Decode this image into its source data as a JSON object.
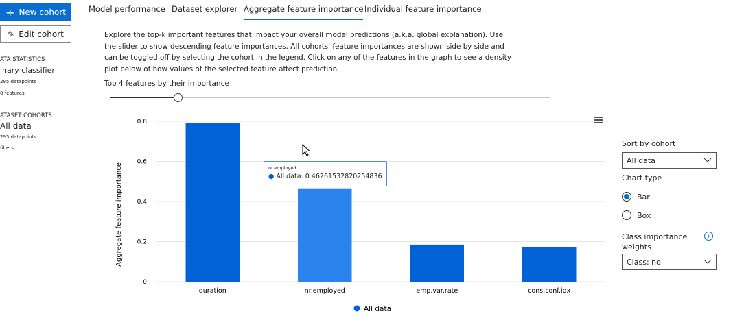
{
  "sidebar": {
    "new_cohort": "New cohort",
    "edit_cohort": "Edit cohort",
    "stats_heading": "ATA STATISTICS",
    "classifier": "inary classifier",
    "datapoints": "295 datapoints",
    "features": "0 features",
    "cohorts_heading": "ATASET COHORTS",
    "cohort_name": "All data",
    "cohort_datapoints": "295 datapoints",
    "cohort_filters": "filters"
  },
  "tabs": [
    "Model performance",
    "Dataset explorer",
    "Aggregate feature importance",
    "Individual feature importance"
  ],
  "description": "Explore the top-k important features that impact your overall model predictions (a.k.a. global explanation). Use the slider to show descending feature importances. All cohorts' feature importances are shown side by side and can be toggled off by selecting the cohort in the legend. Click on any of the features in the graph to see a density plot below of how values of the selected feature affect prediction.",
  "slider_label": "Top 4 features by their importance",
  "tooltip": {
    "title": "nr.employed",
    "text": "All data: 0.46261532820254836"
  },
  "options": {
    "sort_label": "Sort by cohort",
    "sort_value": "All data",
    "chart_type_label": "Chart type",
    "bar": "Bar",
    "box": "Box",
    "class_weights_label": "Class importance weights",
    "class_value": "Class: no"
  },
  "chart_data": {
    "type": "bar",
    "y_label": "Aggregate feature importance",
    "categories": [
      "duration",
      "nr.employed",
      "emp.var.rate",
      "cons.conf.idx"
    ],
    "series": [
      {
        "name": "All data",
        "color": "#0062d6",
        "colors": [
          "#0062d6",
          "#2b83ee",
          "#0062d6",
          "#0062d6"
        ],
        "values": [
          0.79,
          0.46261532820254836,
          0.185,
          0.171
        ]
      }
    ],
    "ylim": [
      0,
      0.8
    ],
    "yticks": [
      0,
      0.2,
      0.4,
      0.6,
      0.8
    ],
    "grid": true
  }
}
